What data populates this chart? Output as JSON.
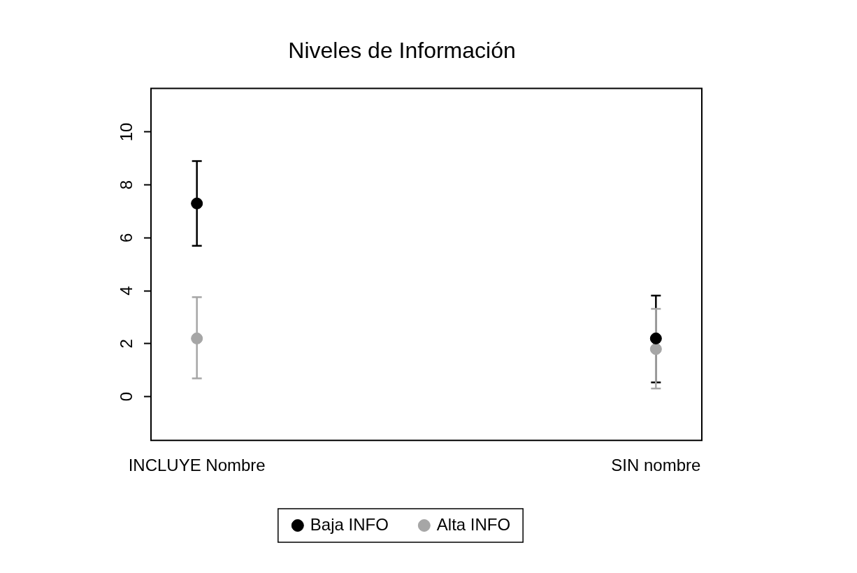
{
  "chart_data": {
    "type": "scatter",
    "title": "Niveles de Información",
    "categories": [
      "INCLUYE Nombre",
      "SIN nombre"
    ],
    "series": [
      {
        "name": "Baja INFO",
        "color": "#000000",
        "values": [
          7.3,
          2.2
        ],
        "errors": [
          [
            5.7,
            8.9
          ],
          [
            0.54,
            3.82
          ]
        ]
      },
      {
        "name": "Alta INFO",
        "color": "#a6a6a6",
        "values": [
          2.2,
          1.8
        ],
        "errors": [
          [
            0.69,
            3.76
          ],
          [
            0.31,
            3.32
          ]
        ]
      }
    ],
    "ylim": [
      -1.65,
      11.65
    ],
    "yticks": [
      0,
      2,
      4,
      6,
      8,
      10
    ],
    "grid": false,
    "legend": "bottom",
    "marker": "circle"
  }
}
